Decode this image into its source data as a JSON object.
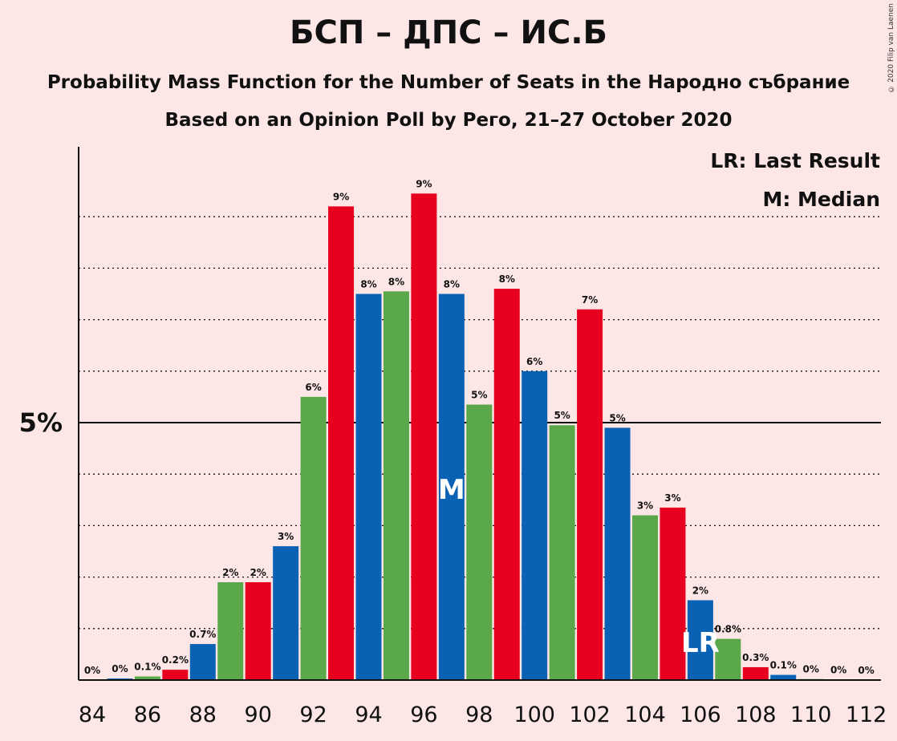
{
  "title": "БСП – ДПС – ИС.Б",
  "subtitle": "Probability Mass Function for the Number of Seats in the Народно събрание",
  "subtitle2": "Based on an Opinion Poll by Рего, 21–27 October 2020",
  "copyright": "© 2020 Filip van Laenen",
  "legend": {
    "lr": "LR: Last Result",
    "median": "M: Median"
  },
  "markers": {
    "median_label": "M",
    "median_seat": 97,
    "lr_label": "LR",
    "lr_seat": 106
  },
  "colors": {
    "background": "#fde6e6",
    "red": "#e8001f",
    "green": "#5ba84a",
    "blue": "#0a62b5"
  },
  "chart_data": {
    "type": "bar",
    "title": "БСП – ДПС – ИС.Б",
    "ylabel_tick": "5%",
    "y_ref_line": 5,
    "ylim": [
      0,
      10.3
    ],
    "xlim": [
      84,
      112
    ],
    "x_ticks": [
      "84",
      "86",
      "88",
      "90",
      "92",
      "94",
      "96",
      "98",
      "100",
      "102",
      "104",
      "106",
      "108",
      "110",
      "112"
    ],
    "grid": "dotted horizontal lines every 1%",
    "legend_placement": "top-right",
    "x": [
      84,
      85,
      86,
      87,
      88,
      89,
      90,
      91,
      92,
      93,
      94,
      95,
      96,
      97,
      98,
      99,
      100,
      101,
      102,
      103,
      104,
      105,
      106,
      107,
      108,
      109,
      110,
      111,
      112
    ],
    "values": [
      0,
      0.03,
      0.07,
      0.2,
      0.7,
      1.9,
      1.9,
      2.6,
      5.5,
      9.2,
      7.5,
      7.55,
      9.45,
      7.5,
      5.35,
      7.6,
      6.0,
      4.95,
      7.2,
      4.9,
      3.2,
      3.35,
      1.55,
      0.8,
      0.25,
      0.1,
      0.02,
      0.01,
      0
    ],
    "labels": [
      "0%",
      "0%",
      "0.1%",
      "0.2%",
      "0.7%",
      "2%",
      "2%",
      "3%",
      "6%",
      "9%",
      "8%",
      "8%",
      "9%",
      "8%",
      "5%",
      "8%",
      "6%",
      "5%",
      "7%",
      "5%",
      "3%",
      "3%",
      "2%",
      "0.8%",
      "0.3%",
      "0.1%",
      "0%",
      "0%",
      "0%"
    ],
    "colors": [
      "blue",
      "blue",
      "green",
      "red",
      "blue",
      "green",
      "red",
      "blue",
      "green",
      "red",
      "blue",
      "green",
      "red",
      "blue",
      "green",
      "red",
      "blue",
      "green",
      "red",
      "blue",
      "green",
      "red",
      "blue",
      "green",
      "red",
      "blue",
      "green",
      "red",
      "blue"
    ]
  }
}
